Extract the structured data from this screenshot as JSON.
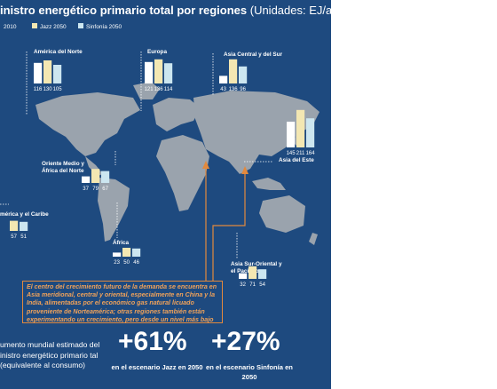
{
  "header": {
    "title": "inistro energético primario total por regiones",
    "units": "(Unidades: EJ/año)"
  },
  "legend": [
    {
      "label": "2010",
      "color": "#ffffff"
    },
    {
      "label": "Jazz 2050",
      "color": "#f3e7b2"
    },
    {
      "label": "Sinfonía 2050",
      "color": "#cce6f0"
    }
  ],
  "chart_data": {
    "type": "bar",
    "title": "inistro energético primario total por regiones (Unidades: EJ/año)",
    "series_names": [
      "2010",
      "Jazz 2050",
      "Sinfonía 2050"
    ],
    "regions": [
      {
        "name": "América del Norte",
        "values": [
          116,
          130,
          105
        ]
      },
      {
        "name": "Europa",
        "values": [
          121,
          136,
          114
        ]
      },
      {
        "name": "Asia Central y del Sur",
        "values": [
          43,
          136,
          96
        ]
      },
      {
        "name": "Asia del Este",
        "values": [
          145,
          211,
          164
        ]
      },
      {
        "name": "Oriente Medio y África del Norte",
        "values": [
          37,
          79,
          67
        ]
      },
      {
        "name": "mérica y el Caribe",
        "values": [
          null,
          57,
          51
        ]
      },
      {
        "name": "África",
        "values": [
          23,
          50,
          46
        ]
      },
      {
        "name": "Asia Sur-Oriental y el Pacífico",
        "values": [
          32,
          71,
          54
        ]
      }
    ]
  },
  "callout": {
    "text": "El centro del crecimiento futuro de la demanda se encuentra en Asia meridional, central y oriental, especialmente en China y la India, alimentadas por el económico gas natural licuado proveniente de Norteamérica; otras regiones también están experimentando un crecimiento, pero desde un nivel más bajo"
  },
  "summary": {
    "text": "umento mundial estimado del inistro energético primario tal (equivalente al consumo)",
    "jazz_value": "+61%",
    "jazz_label": "en el escenario Jazz en 2050",
    "sinfonia_value": "+27%",
    "sinfonia_label": "en el escenario Sinfonía en 2050"
  },
  "colors": {
    "background": "#1e4a7f",
    "map": "#9aa3ad",
    "bar_2010": "#ffffff",
    "bar_jazz": "#f3e7b2",
    "bar_sinfonia": "#cce6f0",
    "accent": "#e2893d"
  }
}
